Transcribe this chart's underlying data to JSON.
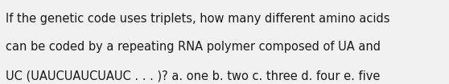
{
  "lines": [
    "If the genetic code uses triplets, how many different amino acids",
    "can be coded by a repeating RNA polymer composed of UA and",
    "UC (UAUCUAUCUAUC . . . )? a. one b. two c. three d. four e. five"
  ],
  "background_color": "#f0f0f0",
  "text_color": "#1a1a1a",
  "font_size": 10.5,
  "fig_width": 5.58,
  "fig_height": 1.05,
  "dpi": 100
}
